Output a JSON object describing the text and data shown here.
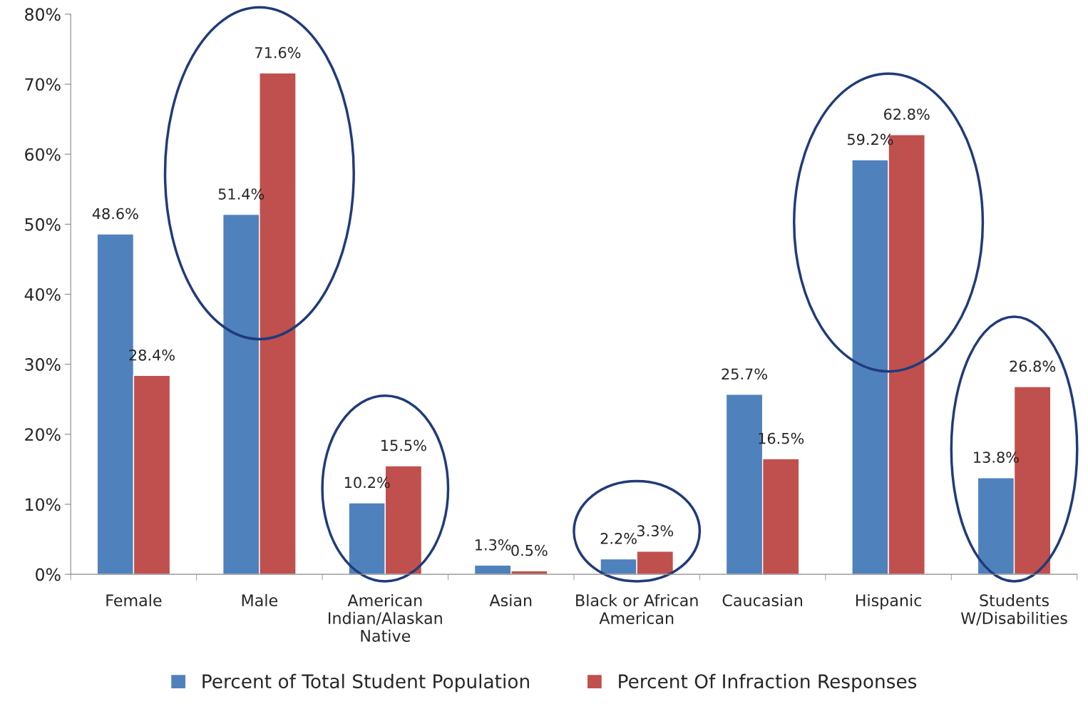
{
  "chart_data": {
    "type": "bar",
    "categories": [
      "Female",
      "Male",
      "American\nIndian/Alaskan\nNative",
      "Asian",
      "Black or African\nAmerican",
      "Caucasian",
      "Hispanic",
      "Students\nW/Disabilities"
    ],
    "series": [
      {
        "name": "Percent of Total Student Population",
        "color": "#4f81bd",
        "values": [
          48.6,
          51.4,
          10.2,
          1.3,
          2.2,
          25.7,
          59.2,
          13.8
        ],
        "value_labels": [
          "48.6%",
          "51.4%",
          "10.2%",
          "1.3%",
          "2.2%",
          "25.7%",
          "59.2%",
          "13.8%"
        ]
      },
      {
        "name": "Percent Of Infraction Responses",
        "color": "#c0504d",
        "values": [
          28.4,
          71.6,
          15.5,
          0.5,
          3.3,
          16.5,
          62.8,
          26.8
        ],
        "value_labels": [
          "28.4%",
          "71.6%",
          "15.5%",
          "0.5%",
          "3.3%",
          "16.5%",
          "62.8%",
          "26.8%"
        ]
      }
    ],
    "ylim": [
      0,
      80
    ],
    "yticks": [
      {
        "value": 0,
        "label": "0%"
      },
      {
        "value": 10,
        "label": "10%"
      },
      {
        "value": 20,
        "label": "20%"
      },
      {
        "value": 30,
        "label": "30%"
      },
      {
        "value": 40,
        "label": "40%"
      },
      {
        "value": 50,
        "label": "50%"
      },
      {
        "value": 60,
        "label": "60%"
      },
      {
        "value": 70,
        "label": "70%"
      },
      {
        "value": 80,
        "label": "80%"
      }
    ],
    "grid": false,
    "legend": "bottom"
  }
}
